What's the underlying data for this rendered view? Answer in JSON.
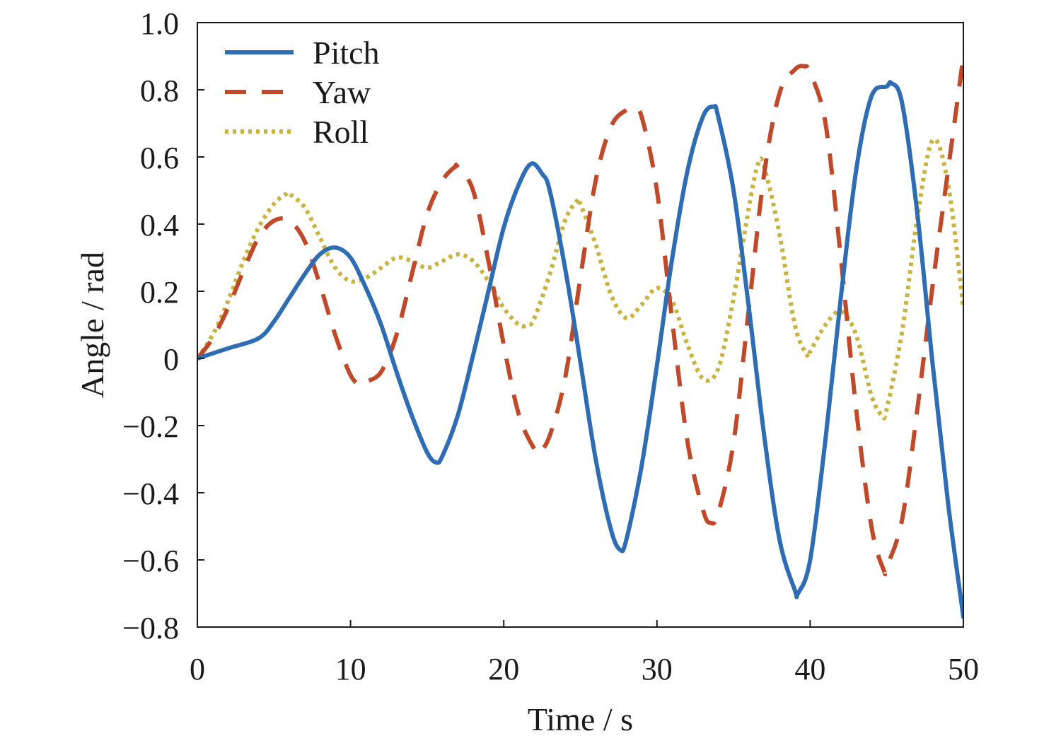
{
  "chart_data": {
    "type": "line",
    "xlabel": "Time / s",
    "ylabel": "Angle / rad",
    "xlim": [
      0,
      50
    ],
    "ylim": [
      -0.8,
      1.0
    ],
    "xticks": [
      0,
      10,
      20,
      30,
      40,
      50
    ],
    "xtick_labels": [
      "0",
      "10",
      "20",
      "30",
      "40",
      "50"
    ],
    "yticks": [
      -0.8,
      -0.6,
      -0.4,
      -0.2,
      0,
      0.2,
      0.4,
      0.6,
      0.8,
      1.0
    ],
    "ytick_labels": [
      "−0.8",
      "−0.6",
      "−0.4",
      "−0.2",
      "0",
      "0.2",
      "0.4",
      "0.6",
      "0.8",
      "1.0"
    ],
    "grid": false,
    "legend_position": "top-left",
    "series": [
      {
        "name": "Pitch",
        "style": "solid",
        "color": "#2e6db4",
        "x": [
          0,
          2,
          4,
          5,
          6,
          7,
          8,
          9,
          10,
          11,
          12,
          13,
          14,
          15,
          15.6,
          16,
          17,
          18,
          19,
          20,
          21,
          21.8,
          22.5,
          23,
          24,
          25,
          26,
          27,
          27.6,
          28,
          29,
          30,
          31,
          32,
          33,
          33.7,
          34,
          35,
          36,
          37,
          38,
          39,
          39.2,
          40,
          41,
          42,
          43,
          44,
          45,
          45.3,
          46,
          47,
          48,
          49,
          50
        ],
        "y": [
          0,
          0.03,
          0.06,
          0.11,
          0.18,
          0.25,
          0.31,
          0.33,
          0.3,
          0.21,
          0.1,
          -0.04,
          -0.17,
          -0.28,
          -0.31,
          -0.29,
          -0.17,
          0.01,
          0.2,
          0.39,
          0.52,
          0.58,
          0.55,
          0.5,
          0.27,
          -0.01,
          -0.3,
          -0.51,
          -0.57,
          -0.54,
          -0.32,
          -0.02,
          0.3,
          0.56,
          0.72,
          0.75,
          0.72,
          0.5,
          0.15,
          -0.23,
          -0.54,
          -0.69,
          -0.7,
          -0.6,
          -0.24,
          0.18,
          0.56,
          0.78,
          0.81,
          0.82,
          0.76,
          0.43,
          -0.02,
          -0.43,
          -0.77
        ]
      },
      {
        "name": "Yaw",
        "style": "dashed",
        "color": "#c0492a",
        "x": [
          0,
          1,
          2,
          3,
          4,
          5,
          6,
          7,
          8,
          9,
          10,
          10.7,
          11,
          12,
          13,
          14,
          15,
          16,
          16.8,
          17,
          18,
          19,
          20,
          21,
          22,
          22.3,
          23,
          24,
          25,
          26,
          27,
          28,
          28.5,
          29,
          30,
          31,
          32,
          33,
          33.5,
          34,
          35,
          36,
          37,
          38,
          39,
          39.6,
          40,
          41,
          42,
          43,
          44,
          44.8,
          45,
          46,
          47,
          48,
          49,
          50
        ],
        "y": [
          0,
          0.06,
          0.15,
          0.26,
          0.36,
          0.41,
          0.41,
          0.35,
          0.22,
          0.07,
          -0.05,
          -0.08,
          -0.07,
          -0.04,
          0.07,
          0.25,
          0.43,
          0.53,
          0.57,
          0.57,
          0.5,
          0.29,
          0.04,
          -0.17,
          -0.27,
          -0.28,
          -0.23,
          -0.06,
          0.24,
          0.53,
          0.69,
          0.74,
          0.74,
          0.72,
          0.5,
          0.11,
          -0.25,
          -0.45,
          -0.49,
          -0.46,
          -0.25,
          0.15,
          0.55,
          0.79,
          0.86,
          0.87,
          0.85,
          0.7,
          0.3,
          -0.15,
          -0.5,
          -0.63,
          -0.62,
          -0.48,
          -0.15,
          0.22,
          0.56,
          0.9
        ]
      },
      {
        "name": "Roll",
        "style": "dotted",
        "color": "#c9b23d",
        "x": [
          0,
          1,
          2,
          3,
          4,
          5,
          5.8,
          6,
          7,
          8,
          9,
          10,
          11,
          12,
          13,
          14,
          15,
          16,
          17,
          18,
          19,
          20,
          21,
          21.6,
          22,
          23,
          24,
          24.8,
          25,
          26,
          27,
          28,
          29,
          30,
          31,
          32,
          33,
          34,
          35,
          36,
          36.6,
          37,
          38,
          39,
          39.8,
          40,
          41,
          42,
          43,
          44,
          44.7,
          45,
          46,
          47,
          48,
          49,
          50
        ],
        "y": [
          0,
          0.07,
          0.17,
          0.29,
          0.39,
          0.46,
          0.49,
          0.49,
          0.45,
          0.36,
          0.27,
          0.23,
          0.24,
          0.27,
          0.3,
          0.29,
          0.27,
          0.29,
          0.31,
          0.29,
          0.23,
          0.15,
          0.1,
          0.1,
          0.12,
          0.25,
          0.41,
          0.47,
          0.46,
          0.34,
          0.19,
          0.12,
          0.16,
          0.21,
          0.17,
          0.04,
          -0.06,
          -0.03,
          0.18,
          0.45,
          0.58,
          0.57,
          0.37,
          0.1,
          0.01,
          0.02,
          0.1,
          0.14,
          0.07,
          -0.11,
          -0.17,
          -0.15,
          0.08,
          0.42,
          0.65,
          0.52,
          0.15
        ]
      }
    ]
  }
}
